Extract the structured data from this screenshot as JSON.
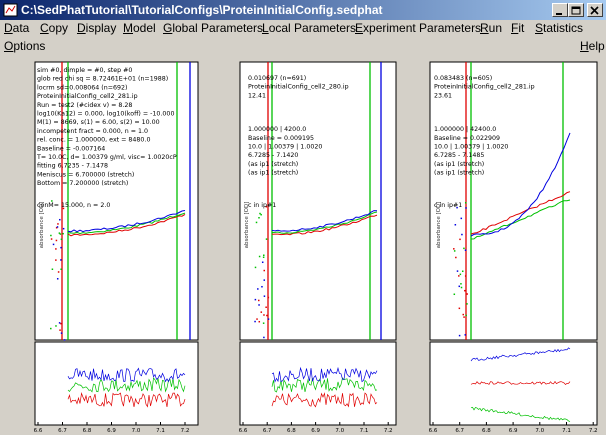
{
  "window": {
    "title": "C:\\SedPhatTutorial\\TutorialConfigs\\ProteinInitialConfig.sedphat"
  },
  "menu": {
    "row1": [
      "Data",
      "Copy",
      "Display",
      "Model",
      "Global Parameters",
      "Local Parameters",
      "Experiment Parameters",
      "Run",
      "Fit",
      "Statistics"
    ],
    "row2": [
      "Options"
    ],
    "help": "Help"
  },
  "panels": [
    {
      "lines": [
        "sim #0, dimple = #0, step #0",
        "glob red chi sq = 8.72461E+01 (n=1988)",
        "locrm sd=0.008064 (n=692)",
        "ProteinInitialConfig_cell2_281.ip",
        "Run = test2 (#cidex v) = 8.28",
        "log10(Ka12) = 0.000, log10(koff) = -10.000",
        "M(1) = 8669, s(1) = 6.00, s(2) = 10.00",
        "incompetent fract = 0.000, n = 1.0",
        "rel. conc. = 1.000000, ext = 8480.0",
        "Baseline = -0.007164",
        "T= 10.0C, d= 1.00379 g/ml, visc= 1.0020cP",
        "fitting 6.7235 - 7.1478",
        "Meniscus = 6.700000 (stretch)",
        "Bottom = 7.200000 (stretch)"
      ],
      "footer_line": "conM= 15.000, n = 2.0",
      "y_label": "absorbance [OD]",
      "x_ticks": [
        "6.6",
        "6.7",
        "6.8",
        "6.9",
        "7.0",
        "7.1",
        "7.2"
      ]
    },
    {
      "lines": [
        "0.010697 (n=691)",
        "ProteinInitialConfig_cell2_280.ip",
        "12.41",
        "1.000000 | 4200.0",
        "Baseline = 0.009195",
        "10.0 | 1.00379 | 1.0020",
        "6.7285 - 7.1420",
        "(as ip1 (stretch)",
        "(as ip1 (stretch)"
      ],
      "footer_line": "c in ip#1",
      "y_label": "absorbance [OD]",
      "x_ticks": [
        "6.6",
        "6.7",
        "6.8",
        "6.9",
        "7.0",
        "7.1",
        "7.2"
      ]
    },
    {
      "lines": [
        "0.083483 (n=605)",
        "ProteinInitialConfig_cell2_281.ip",
        "23.61",
        "1.000000 | 42400.0",
        "Baseline = 0.022909",
        "10.0 | 1.00379 | 1.0020",
        "6.7285 - 7.1485",
        "(as ip1 (stretch)",
        "(as ip1 (stretch)"
      ],
      "footer_line": "c in ip#1",
      "y_label": "absorbance [OD]",
      "x_ticks": [
        "6.6",
        "6.7",
        "6.8",
        "6.9",
        "7.0",
        "7.1",
        "7.2"
      ]
    }
  ]
}
